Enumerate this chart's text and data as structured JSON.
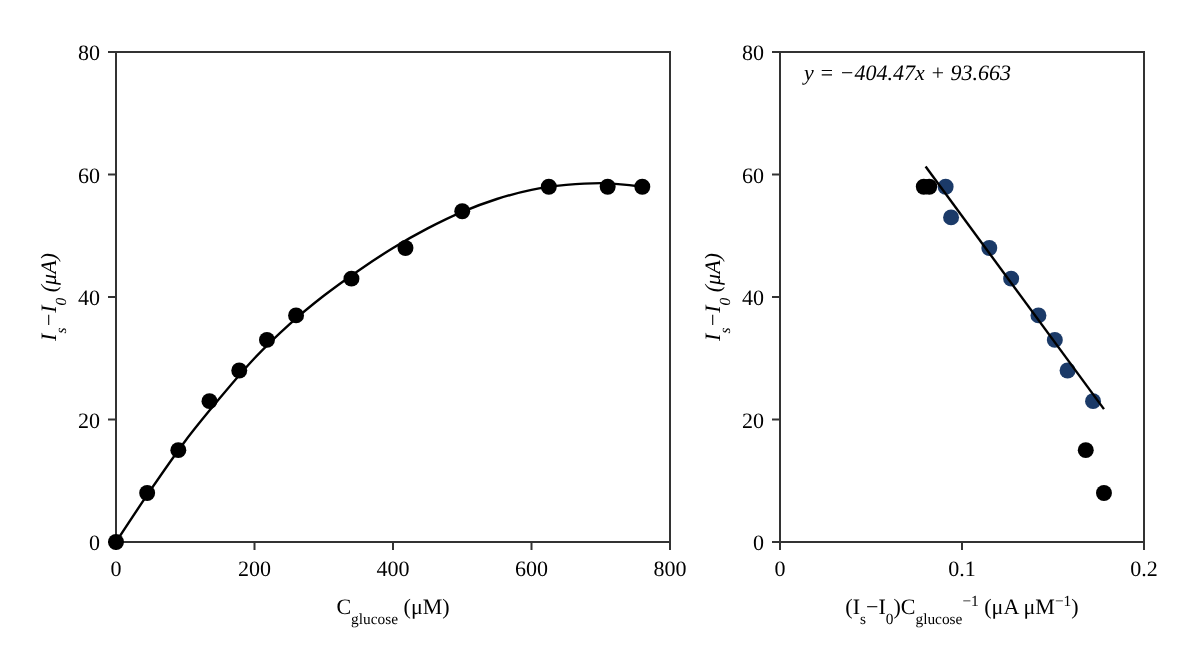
{
  "chart_data": [
    {
      "type": "scatter",
      "xlabel": "C$_{glucose}$ (μM)",
      "ylabel": "I$_{s}$−I$_{0}$ (μA)",
      "xlim": [
        0,
        800
      ],
      "xticks": [
        0,
        200,
        400,
        600,
        800
      ],
      "ylim": [
        0,
        80
      ],
      "yticks": [
        0,
        20,
        40,
        60,
        80
      ],
      "grid": false,
      "marker": "circle",
      "series": [
        {
          "color": "#000000",
          "x": [
            0,
            45,
            90,
            135,
            178,
            218,
            260,
            340,
            418,
            500,
            625,
            710,
            760
          ],
          "values": [
            0,
            8,
            15,
            23,
            28,
            33,
            37,
            43,
            48,
            54,
            58,
            58,
            58
          ]
        },
        {
          "type": "line",
          "color": "#000000",
          "marker": "none",
          "x": [
            0,
            50,
            100,
            150,
            200,
            250,
            300,
            350,
            400,
            450,
            500,
            550,
            600,
            650,
            700,
            760
          ],
          "values": [
            0,
            8.5,
            16.5,
            23.5,
            30,
            35.5,
            40.2,
            44.3,
            48,
            51.2,
            53.9,
            56,
            57.5,
            58.3,
            58.6,
            58
          ]
        }
      ]
    },
    {
      "type": "scatter",
      "xlabel": "(I$_{s}$−I$_{0}$)C$_{glucose}$$^{−1}$ (μA μM$^{−1}$)",
      "ylabel": "I$_{s}$−I$_{0}$ (μA)",
      "xlim": [
        0,
        0.2
      ],
      "xticks": [
        0,
        0.1,
        0.2
      ],
      "ylim": [
        0,
        80
      ],
      "yticks": [
        0,
        20,
        40,
        60,
        80
      ],
      "grid": false,
      "marker": "circle",
      "annotations": [
        "y = −404.47x + 93.663"
      ],
      "series": [
        {
          "color": "#000000",
          "x": [
            0.079,
            0.082,
            0.168,
            0.178
          ],
          "values": [
            58,
            58,
            15,
            8
          ]
        },
        {
          "color": "#1b3a68",
          "x": [
            0.091,
            0.094,
            0.115,
            0.127,
            0.142,
            0.151,
            0.158,
            0.172
          ],
          "values": [
            58,
            53,
            48,
            43,
            37,
            33,
            28,
            23
          ]
        },
        {
          "type": "line",
          "color": "#000000",
          "marker": "none",
          "x": [
            0.08,
            0.178
          ],
          "values": [
            61.3,
            21.7
          ]
        }
      ]
    }
  ]
}
